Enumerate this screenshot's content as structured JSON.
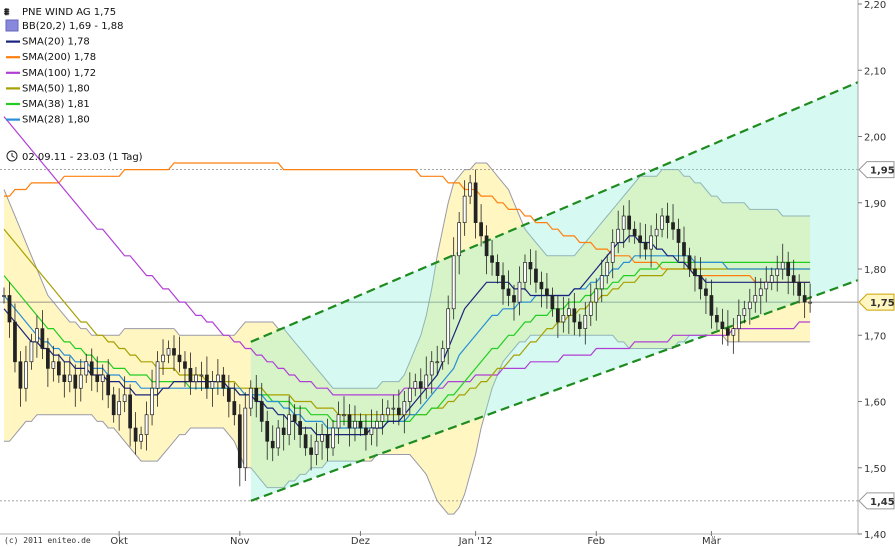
{
  "chart_data": {
    "type": "candlestick",
    "title": "PNE WIND AG 1,75",
    "date_range": "02.09.11 - 23.03 (1 Tag)",
    "copyright": "(c) 2011 eniteo.de",
    "ylim": [
      1.4,
      2.2
    ],
    "y_ticks": [
      {
        "v": 2.2,
        "label": "2,20"
      },
      {
        "v": 2.1,
        "label": "2,10"
      },
      {
        "v": 2.0,
        "label": "2,00"
      },
      {
        "v": 1.9,
        "label": "1,90"
      },
      {
        "v": 1.8,
        "label": "1,80"
      },
      {
        "v": 1.7,
        "label": "1,70"
      },
      {
        "v": 1.6,
        "label": "1,60"
      },
      {
        "v": 1.5,
        "label": "1,50"
      },
      {
        "v": 1.4,
        "label": "1,40"
      }
    ],
    "x_ticks": [
      {
        "i": 21,
        "label": "Okt"
      },
      {
        "i": 43,
        "label": "Nov"
      },
      {
        "i": 65,
        "label": "Dez"
      },
      {
        "i": 86,
        "label": "Jan '12"
      },
      {
        "i": 108,
        "label": "Feb"
      },
      {
        "i": 129,
        "label": "Mär"
      }
    ],
    "last_price": {
      "value": 1.75,
      "label": "1,75"
    },
    "ref_lines": [
      {
        "value": 1.95,
        "label": "1,95"
      },
      {
        "value": 1.45,
        "label": "1,45"
      }
    ],
    "legend": [
      {
        "name": "BB(20,2) 1,69 - 1,88",
        "color": "#8888dd",
        "kind": "box"
      },
      {
        "name": "SMA(20) 1,78",
        "color": "#1a237e",
        "kind": "line"
      },
      {
        "name": "SMA(200) 1,78",
        "color": "#ff7f0e",
        "kind": "line"
      },
      {
        "name": "SMA(100) 1,72",
        "color": "#b03fd6",
        "kind": "line"
      },
      {
        "name": "SMA(50) 1,80",
        "color": "#a8a000",
        "kind": "line"
      },
      {
        "name": "SMA(38) 1,81",
        "color": "#22cc22",
        "kind": "line"
      },
      {
        "name": "SMA(28) 1,80",
        "color": "#2a8fd6",
        "kind": "line"
      }
    ],
    "channel": {
      "start_index": 45,
      "end_index": 158,
      "upper": [
        1.69,
        2.09
      ],
      "lower": [
        1.45,
        1.79
      ],
      "color": "#1e8b1e"
    },
    "n_points": 148,
    "close": [
      1.76,
      1.72,
      1.66,
      1.62,
      1.66,
      1.69,
      1.71,
      1.68,
      1.65,
      1.66,
      1.64,
      1.63,
      1.64,
      1.62,
      1.64,
      1.66,
      1.64,
      1.63,
      1.64,
      1.61,
      1.58,
      1.6,
      1.61,
      1.56,
      1.54,
      1.55,
      1.58,
      1.62,
      1.66,
      1.67,
      1.68,
      1.67,
      1.66,
      1.65,
      1.63,
      1.64,
      1.64,
      1.62,
      1.63,
      1.64,
      1.62,
      1.6,
      1.58,
      1.5,
      1.59,
      1.62,
      1.6,
      1.57,
      1.54,
      1.53,
      1.56,
      1.55,
      1.58,
      1.57,
      1.55,
      1.53,
      1.52,
      1.54,
      1.55,
      1.53,
      1.56,
      1.58,
      1.58,
      1.56,
      1.57,
      1.56,
      1.55,
      1.56,
      1.57,
      1.58,
      1.59,
      1.59,
      1.58,
      1.6,
      1.62,
      1.63,
      1.62,
      1.64,
      1.66,
      1.66,
      1.68,
      1.74,
      1.82,
      1.87,
      1.91,
      1.93,
      1.87,
      1.85,
      1.82,
      1.81,
      1.79,
      1.77,
      1.76,
      1.75,
      1.78,
      1.81,
      1.8,
      1.78,
      1.77,
      1.76,
      1.74,
      1.72,
      1.73,
      1.74,
      1.72,
      1.71,
      1.73,
      1.75,
      1.77,
      1.79,
      1.81,
      1.84,
      1.86,
      1.88,
      1.86,
      1.85,
      1.84,
      1.83,
      1.85,
      1.86,
      1.88,
      1.87,
      1.86,
      1.84,
      1.82,
      1.8,
      1.79,
      1.77,
      1.76,
      1.73,
      1.72,
      1.71,
      1.7,
      1.71,
      1.73,
      1.74,
      1.75,
      1.76,
      1.77,
      1.78,
      1.79,
      1.8,
      1.81,
      1.79,
      1.78,
      1.76,
      1.75,
      1.75
    ],
    "sma20": [
      1.74,
      1.73,
      1.72,
      1.71,
      1.7,
      1.69,
      1.69,
      1.68,
      1.68,
      1.67,
      1.67,
      1.66,
      1.66,
      1.65,
      1.65,
      1.65,
      1.64,
      1.64,
      1.64,
      1.63,
      1.63,
      1.63,
      1.62,
      1.62,
      1.61,
      1.61,
      1.61,
      1.61,
      1.61,
      1.62,
      1.62,
      1.63,
      1.63,
      1.63,
      1.63,
      1.63,
      1.63,
      1.63,
      1.63,
      1.63,
      1.63,
      1.62,
      1.62,
      1.61,
      1.61,
      1.61,
      1.6,
      1.6,
      1.59,
      1.59,
      1.58,
      1.58,
      1.57,
      1.57,
      1.56,
      1.56,
      1.56,
      1.55,
      1.55,
      1.55,
      1.55,
      1.55,
      1.55,
      1.55,
      1.55,
      1.55,
      1.55,
      1.56,
      1.56,
      1.56,
      1.57,
      1.57,
      1.57,
      1.58,
      1.59,
      1.6,
      1.61,
      1.62,
      1.63,
      1.64,
      1.66,
      1.68,
      1.7,
      1.72,
      1.74,
      1.75,
      1.76,
      1.77,
      1.78,
      1.78,
      1.78,
      1.78,
      1.78,
      1.77,
      1.77,
      1.77,
      1.76,
      1.76,
      1.76,
      1.76,
      1.76,
      1.76,
      1.76,
      1.76,
      1.77,
      1.77,
      1.78,
      1.79,
      1.8,
      1.81,
      1.82,
      1.83,
      1.84,
      1.84,
      1.85,
      1.85,
      1.84,
      1.84,
      1.84,
      1.83,
      1.83,
      1.82,
      1.82,
      1.81,
      1.81,
      1.8,
      1.79,
      1.79,
      1.78,
      1.78,
      1.78,
      1.78,
      1.78,
      1.78,
      1.78,
      1.78,
      1.78,
      1.78,
      1.78,
      1.78,
      1.78,
      1.78,
      1.78,
      1.78,
      1.78,
      1.78,
      1.78,
      1.78
    ],
    "sma28": [
      1.76,
      1.75,
      1.74,
      1.73,
      1.72,
      1.71,
      1.7,
      1.69,
      1.69,
      1.68,
      1.68,
      1.67,
      1.67,
      1.66,
      1.66,
      1.66,
      1.65,
      1.65,
      1.65,
      1.64,
      1.64,
      1.64,
      1.63,
      1.63,
      1.63,
      1.62,
      1.62,
      1.62,
      1.62,
      1.62,
      1.62,
      1.62,
      1.62,
      1.62,
      1.62,
      1.62,
      1.62,
      1.62,
      1.62,
      1.62,
      1.62,
      1.62,
      1.62,
      1.62,
      1.61,
      1.61,
      1.61,
      1.61,
      1.6,
      1.6,
      1.6,
      1.59,
      1.59,
      1.58,
      1.58,
      1.57,
      1.57,
      1.57,
      1.57,
      1.56,
      1.56,
      1.56,
      1.56,
      1.56,
      1.56,
      1.56,
      1.56,
      1.56,
      1.56,
      1.56,
      1.57,
      1.57,
      1.57,
      1.57,
      1.58,
      1.58,
      1.59,
      1.6,
      1.61,
      1.62,
      1.63,
      1.64,
      1.65,
      1.67,
      1.68,
      1.69,
      1.7,
      1.71,
      1.72,
      1.73,
      1.73,
      1.74,
      1.74,
      1.74,
      1.75,
      1.75,
      1.75,
      1.76,
      1.76,
      1.76,
      1.76,
      1.76,
      1.76,
      1.76,
      1.77,
      1.77,
      1.77,
      1.78,
      1.78,
      1.79,
      1.79,
      1.8,
      1.8,
      1.81,
      1.81,
      1.82,
      1.82,
      1.82,
      1.82,
      1.82,
      1.82,
      1.82,
      1.82,
      1.82,
      1.82,
      1.82,
      1.81,
      1.81,
      1.81,
      1.81,
      1.81,
      1.81,
      1.8,
      1.8,
      1.8,
      1.8,
      1.8,
      1.8,
      1.8,
      1.8,
      1.8,
      1.8,
      1.8,
      1.8,
      1.8,
      1.8,
      1.8,
      1.8
    ],
    "sma38": [
      1.79,
      1.78,
      1.77,
      1.76,
      1.75,
      1.74,
      1.73,
      1.72,
      1.71,
      1.71,
      1.7,
      1.69,
      1.69,
      1.68,
      1.68,
      1.67,
      1.67,
      1.66,
      1.66,
      1.66,
      1.65,
      1.65,
      1.65,
      1.64,
      1.64,
      1.64,
      1.64,
      1.63,
      1.63,
      1.63,
      1.63,
      1.63,
      1.63,
      1.63,
      1.62,
      1.62,
      1.62,
      1.62,
      1.62,
      1.62,
      1.62,
      1.62,
      1.62,
      1.61,
      1.61,
      1.61,
      1.61,
      1.61,
      1.61,
      1.6,
      1.6,
      1.6,
      1.6,
      1.59,
      1.59,
      1.59,
      1.58,
      1.58,
      1.58,
      1.58,
      1.57,
      1.57,
      1.57,
      1.57,
      1.57,
      1.57,
      1.57,
      1.57,
      1.57,
      1.57,
      1.57,
      1.57,
      1.57,
      1.57,
      1.57,
      1.58,
      1.58,
      1.58,
      1.59,
      1.59,
      1.6,
      1.61,
      1.61,
      1.62,
      1.63,
      1.64,
      1.65,
      1.66,
      1.67,
      1.68,
      1.68,
      1.69,
      1.7,
      1.7,
      1.71,
      1.72,
      1.72,
      1.73,
      1.73,
      1.73,
      1.74,
      1.74,
      1.74,
      1.75,
      1.75,
      1.75,
      1.76,
      1.76,
      1.77,
      1.77,
      1.77,
      1.78,
      1.78,
      1.79,
      1.79,
      1.79,
      1.8,
      1.8,
      1.8,
      1.8,
      1.81,
      1.81,
      1.81,
      1.81,
      1.81,
      1.81,
      1.81,
      1.81,
      1.81,
      1.81,
      1.81,
      1.81,
      1.81,
      1.81,
      1.81,
      1.81,
      1.81,
      1.81,
      1.81,
      1.81,
      1.81,
      1.81,
      1.81,
      1.81,
      1.81,
      1.81,
      1.81,
      1.81
    ],
    "sma50": [
      1.86,
      1.85,
      1.84,
      1.83,
      1.82,
      1.81,
      1.8,
      1.79,
      1.78,
      1.77,
      1.76,
      1.75,
      1.74,
      1.73,
      1.72,
      1.72,
      1.71,
      1.7,
      1.7,
      1.69,
      1.69,
      1.68,
      1.68,
      1.67,
      1.67,
      1.66,
      1.66,
      1.66,
      1.65,
      1.65,
      1.65,
      1.65,
      1.64,
      1.64,
      1.64,
      1.64,
      1.64,
      1.63,
      1.63,
      1.63,
      1.63,
      1.63,
      1.63,
      1.62,
      1.62,
      1.62,
      1.62,
      1.62,
      1.61,
      1.61,
      1.61,
      1.61,
      1.61,
      1.6,
      1.6,
      1.6,
      1.6,
      1.59,
      1.59,
      1.59,
      1.59,
      1.58,
      1.58,
      1.58,
      1.58,
      1.58,
      1.58,
      1.58,
      1.58,
      1.58,
      1.58,
      1.58,
      1.58,
      1.58,
      1.58,
      1.58,
      1.58,
      1.58,
      1.59,
      1.59,
      1.59,
      1.6,
      1.6,
      1.61,
      1.61,
      1.62,
      1.62,
      1.63,
      1.63,
      1.64,
      1.65,
      1.65,
      1.66,
      1.67,
      1.67,
      1.68,
      1.69,
      1.69,
      1.7,
      1.71,
      1.71,
      1.72,
      1.72,
      1.73,
      1.73,
      1.74,
      1.74,
      1.75,
      1.75,
      1.76,
      1.76,
      1.77,
      1.77,
      1.78,
      1.78,
      1.78,
      1.79,
      1.79,
      1.79,
      1.79,
      1.79,
      1.8,
      1.8,
      1.8,
      1.8,
      1.8,
      1.8,
      1.8,
      1.8,
      1.8,
      1.8,
      1.8,
      1.8,
      1.8,
      1.8,
      1.8,
      1.8,
      1.8,
      1.8,
      1.8,
      1.8,
      1.8,
      1.8,
      1.8,
      1.8,
      1.8,
      1.8,
      1.8
    ],
    "sma100": [
      2.03,
      2.02,
      2.01,
      2.0,
      1.99,
      1.98,
      1.97,
      1.96,
      1.95,
      1.94,
      1.93,
      1.92,
      1.91,
      1.9,
      1.89,
      1.88,
      1.87,
      1.86,
      1.86,
      1.85,
      1.84,
      1.83,
      1.82,
      1.82,
      1.81,
      1.8,
      1.79,
      1.79,
      1.78,
      1.77,
      1.77,
      1.76,
      1.75,
      1.75,
      1.74,
      1.73,
      1.73,
      1.72,
      1.72,
      1.71,
      1.7,
      1.7,
      1.69,
      1.69,
      1.68,
      1.68,
      1.67,
      1.67,
      1.66,
      1.66,
      1.65,
      1.65,
      1.64,
      1.64,
      1.63,
      1.63,
      1.63,
      1.62,
      1.62,
      1.62,
      1.61,
      1.61,
      1.61,
      1.61,
      1.61,
      1.61,
      1.61,
      1.61,
      1.61,
      1.61,
      1.61,
      1.61,
      1.61,
      1.62,
      1.62,
      1.62,
      1.62,
      1.62,
      1.62,
      1.62,
      1.62,
      1.63,
      1.63,
      1.63,
      1.63,
      1.63,
      1.64,
      1.64,
      1.64,
      1.64,
      1.64,
      1.65,
      1.65,
      1.65,
      1.65,
      1.65,
      1.66,
      1.66,
      1.66,
      1.66,
      1.66,
      1.66,
      1.67,
      1.67,
      1.67,
      1.67,
      1.67,
      1.67,
      1.68,
      1.68,
      1.68,
      1.68,
      1.68,
      1.68,
      1.68,
      1.69,
      1.69,
      1.69,
      1.69,
      1.69,
      1.69,
      1.69,
      1.7,
      1.7,
      1.7,
      1.7,
      1.7,
      1.7,
      1.7,
      1.7,
      1.7,
      1.7,
      1.7,
      1.71,
      1.71,
      1.71,
      1.71,
      1.71,
      1.71,
      1.71,
      1.71,
      1.71,
      1.71,
      1.71,
      1.71,
      1.72,
      1.72,
      1.72
    ],
    "sma200": [
      1.91,
      1.91,
      1.92,
      1.92,
      1.92,
      1.93,
      1.93,
      1.93,
      1.93,
      1.93,
      1.93,
      1.94,
      1.94,
      1.94,
      1.94,
      1.94,
      1.94,
      1.94,
      1.94,
      1.94,
      1.94,
      1.94,
      1.95,
      1.95,
      1.95,
      1.95,
      1.95,
      1.95,
      1.95,
      1.95,
      1.95,
      1.96,
      1.96,
      1.96,
      1.96,
      1.96,
      1.96,
      1.96,
      1.96,
      1.96,
      1.96,
      1.96,
      1.96,
      1.96,
      1.96,
      1.96,
      1.96,
      1.96,
      1.96,
      1.96,
      1.96,
      1.95,
      1.95,
      1.95,
      1.95,
      1.95,
      1.95,
      1.95,
      1.95,
      1.95,
      1.95,
      1.95,
      1.95,
      1.95,
      1.95,
      1.95,
      1.95,
      1.95,
      1.95,
      1.95,
      1.95,
      1.95,
      1.95,
      1.95,
      1.95,
      1.95,
      1.94,
      1.94,
      1.94,
      1.94,
      1.94,
      1.93,
      1.93,
      1.93,
      1.92,
      1.92,
      1.92,
      1.91,
      1.91,
      1.91,
      1.9,
      1.9,
      1.89,
      1.89,
      1.89,
      1.88,
      1.88,
      1.87,
      1.87,
      1.87,
      1.86,
      1.86,
      1.85,
      1.85,
      1.85,
      1.84,
      1.84,
      1.84,
      1.83,
      1.83,
      1.83,
      1.82,
      1.82,
      1.82,
      1.82,
      1.81,
      1.81,
      1.81,
      1.81,
      1.81,
      1.8,
      1.8,
      1.8,
      1.8,
      1.8,
      1.8,
      1.79,
      1.79,
      1.79,
      1.79,
      1.79,
      1.79,
      1.79,
      1.79,
      1.79,
      1.79,
      1.79,
      1.78,
      1.78,
      1.78,
      1.78,
      1.78,
      1.78,
      1.78,
      1.78,
      1.78,
      1.78,
      1.78
    ],
    "bb_upper": [
      1.92,
      1.9,
      1.88,
      1.86,
      1.84,
      1.82,
      1.8,
      1.78,
      1.76,
      1.75,
      1.74,
      1.73,
      1.72,
      1.72,
      1.71,
      1.71,
      1.7,
      1.7,
      1.7,
      1.7,
      1.7,
      1.7,
      1.71,
      1.71,
      1.71,
      1.71,
      1.71,
      1.71,
      1.71,
      1.71,
      1.71,
      1.71,
      1.7,
      1.7,
      1.7,
      1.7,
      1.7,
      1.7,
      1.7,
      1.7,
      1.7,
      1.7,
      1.7,
      1.71,
      1.72,
      1.72,
      1.72,
      1.72,
      1.72,
      1.72,
      1.71,
      1.71,
      1.7,
      1.69,
      1.68,
      1.67,
      1.66,
      1.65,
      1.64,
      1.63,
      1.62,
      1.62,
      1.62,
      1.62,
      1.62,
      1.62,
      1.62,
      1.62,
      1.62,
      1.63,
      1.63,
      1.63,
      1.63,
      1.64,
      1.66,
      1.68,
      1.7,
      1.73,
      1.77,
      1.82,
      1.86,
      1.9,
      1.93,
      1.94,
      1.95,
      1.95,
      1.96,
      1.96,
      1.96,
      1.95,
      1.94,
      1.93,
      1.92,
      1.9,
      1.88,
      1.86,
      1.85,
      1.84,
      1.83,
      1.82,
      1.82,
      1.82,
      1.82,
      1.82,
      1.82,
      1.83,
      1.84,
      1.85,
      1.86,
      1.87,
      1.88,
      1.89,
      1.9,
      1.91,
      1.92,
      1.93,
      1.94,
      1.94,
      1.94,
      1.94,
      1.95,
      1.95,
      1.95,
      1.95,
      1.94,
      1.94,
      1.93,
      1.93,
      1.92,
      1.91,
      1.91,
      1.9,
      1.9,
      1.9,
      1.9,
      1.9,
      1.89,
      1.89,
      1.89,
      1.89,
      1.89,
      1.89,
      1.88,
      1.88,
      1.88,
      1.88,
      1.88,
      1.88
    ],
    "bb_lower": [
      1.54,
      1.54,
      1.55,
      1.56,
      1.57,
      1.57,
      1.58,
      1.58,
      1.58,
      1.58,
      1.58,
      1.58,
      1.58,
      1.58,
      1.58,
      1.58,
      1.58,
      1.57,
      1.57,
      1.56,
      1.56,
      1.55,
      1.54,
      1.53,
      1.52,
      1.51,
      1.51,
      1.51,
      1.51,
      1.52,
      1.53,
      1.54,
      1.55,
      1.55,
      1.56,
      1.56,
      1.56,
      1.56,
      1.56,
      1.56,
      1.56,
      1.55,
      1.54,
      1.52,
      1.5,
      1.5,
      1.49,
      1.48,
      1.47,
      1.47,
      1.47,
      1.47,
      1.48,
      1.48,
      1.49,
      1.49,
      1.5,
      1.5,
      1.5,
      1.51,
      1.51,
      1.51,
      1.51,
      1.51,
      1.51,
      1.51,
      1.51,
      1.51,
      1.52,
      1.52,
      1.52,
      1.52,
      1.52,
      1.52,
      1.52,
      1.51,
      1.5,
      1.49,
      1.47,
      1.45,
      1.44,
      1.43,
      1.43,
      1.44,
      1.46,
      1.49,
      1.52,
      1.56,
      1.59,
      1.62,
      1.64,
      1.66,
      1.67,
      1.68,
      1.69,
      1.69,
      1.7,
      1.7,
      1.7,
      1.7,
      1.7,
      1.7,
      1.7,
      1.7,
      1.7,
      1.7,
      1.7,
      1.7,
      1.7,
      1.7,
      1.7,
      1.7,
      1.69,
      1.69,
      1.68,
      1.68,
      1.68,
      1.68,
      1.68,
      1.68,
      1.68,
      1.68,
      1.68,
      1.69,
      1.69,
      1.7,
      1.7,
      1.7,
      1.7,
      1.7,
      1.7,
      1.7,
      1.69,
      1.69,
      1.69,
      1.69,
      1.69,
      1.69,
      1.69,
      1.69,
      1.69,
      1.69,
      1.69,
      1.69,
      1.69,
      1.69,
      1.69,
      1.69
    ]
  }
}
